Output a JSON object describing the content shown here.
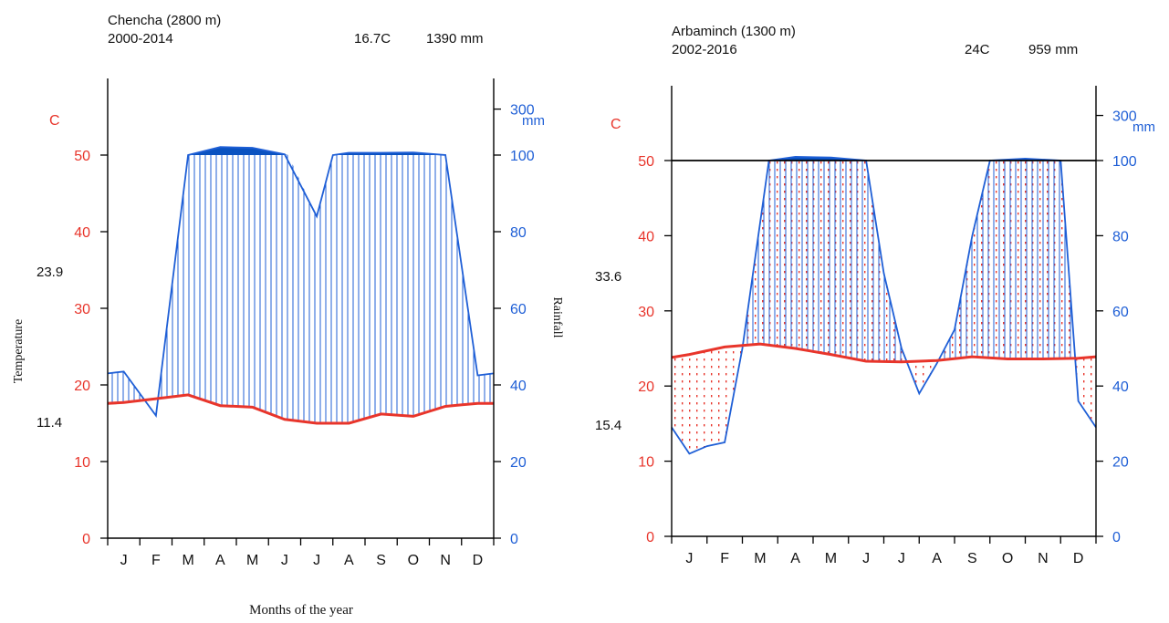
{
  "colors": {
    "temperature": "#e8352b",
    "rainfall": "#1f5fd6",
    "excess": "#0a52c0",
    "axis": "#000000",
    "text": "#111111"
  },
  "chart_data": [
    {
      "type": "climate-diagram",
      "station": "Chencha (2800 m)",
      "period": "2000-2014",
      "mean_temperature": "16.7C",
      "annual_rainfall": "1390 mm",
      "temp_unit": "C",
      "rain_unit": "mm",
      "ylabel_left": "Temperature",
      "ylabel_right": "Rainfall",
      "xlabel": "Months of the year",
      "abs_max_label": "23.9",
      "min_label": "11.4",
      "months": [
        "J",
        "F",
        "M",
        "A",
        "M",
        "J",
        "J",
        "A",
        "S",
        "O",
        "N",
        "D"
      ],
      "temp_ticks": [
        "0",
        "10",
        "20",
        "30",
        "40",
        "50"
      ],
      "rain_ticks": [
        "0",
        "20",
        "40",
        "60",
        "80",
        "100",
        "300"
      ],
      "ylim_temp": [
        0,
        50
      ],
      "ylim_rain": [
        0,
        300
      ],
      "temperature": {
        "x": [
          0,
          0.5,
          1.5,
          2.5,
          3.5,
          4.5,
          5.5,
          6.5,
          7.5,
          8.5,
          9.5,
          10.5,
          11.5,
          12
        ],
        "values": [
          17.6,
          17.7,
          18.2,
          18.7,
          17.3,
          17.1,
          15.5,
          15.0,
          15.0,
          16.2,
          15.9,
          17.2,
          17.6,
          17.6
        ]
      },
      "rainfall": {
        "x": [
          0,
          0.5,
          1.5,
          2.5,
          3.5,
          4.5,
          5.5,
          6.5,
          7.0,
          7.5,
          8.5,
          9.5,
          10.5,
          11.5,
          12
        ],
        "values": [
          43,
          43.5,
          32,
          100,
          121,
          119,
          102,
          84,
          100,
          106,
          106,
          107,
          100,
          42.5,
          43
        ]
      }
    },
    {
      "type": "climate-diagram",
      "station": "Arbaminch (1300 m)",
      "period": "2002-2016",
      "mean_temperature": "24C",
      "annual_rainfall": "959 mm",
      "temp_unit": "C",
      "rain_unit": "mm",
      "abs_max_label": "33.6",
      "min_label": "15.4",
      "months": [
        "J",
        "F",
        "M",
        "A",
        "M",
        "J",
        "J",
        "A",
        "S",
        "O",
        "N",
        "D"
      ],
      "temp_ticks": [
        "0",
        "10",
        "20",
        "30",
        "40",
        "50"
      ],
      "rain_ticks": [
        "0",
        "20",
        "40",
        "60",
        "80",
        "100",
        "300"
      ],
      "ylim_temp": [
        0,
        50
      ],
      "ylim_rain": [
        0,
        300
      ],
      "temperature": {
        "x": [
          0,
          0.5,
          1.5,
          2.5,
          3.5,
          4.5,
          5.5,
          6.5,
          7.5,
          8.5,
          9.5,
          10.5,
          11.5,
          12
        ],
        "values": [
          23.8,
          24.2,
          25.2,
          25.6,
          25.0,
          24.2,
          23.3,
          23.2,
          23.4,
          23.9,
          23.6,
          23.6,
          23.7,
          23.9
        ]
      },
      "rainfall": {
        "x": [
          0,
          0.5,
          1.0,
          1.5,
          2.0,
          2.75,
          3.5,
          4.5,
          5.5,
          6.0,
          6.5,
          7.0,
          7.5,
          8.0,
          8.5,
          9.0,
          10.0,
          11.0,
          11.5,
          12
        ],
        "values": [
          29,
          22,
          24,
          25,
          50,
          100,
          110,
          108,
          100,
          70,
          50,
          38,
          46,
          55,
          80,
          100,
          105,
          100,
          36,
          29
        ]
      }
    }
  ]
}
